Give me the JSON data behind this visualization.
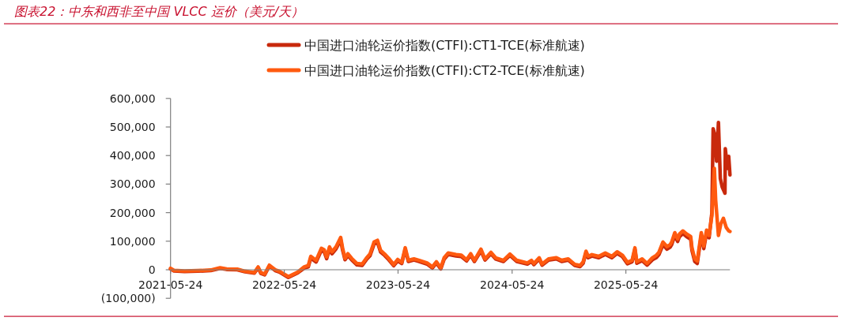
{
  "chart_data": {
    "type": "line",
    "title": "图表22：中东和西非至中国 VLCC 运价（美元/天）",
    "series": [
      {
        "name": "中国进口油轮运价指数(CTFI):CT1-TCE(标准航速)",
        "color": "#c8290c",
        "x": [
          "2021-05-24",
          "2021-06-04",
          "2021-07-08",
          "2021-08-19",
          "2021-09-30",
          "2021-10-30",
          "2021-11-20",
          "2021-12-24",
          "2022-01-18",
          "2022-02-17",
          "2022-03-01",
          "2022-03-10",
          "2022-03-22",
          "2022-04-06",
          "2022-04-25",
          "2022-05-08",
          "2022-06-06",
          "2022-07-06",
          "2022-07-27",
          "2022-08-09",
          "2022-08-17",
          "2022-09-03",
          "2022-09-20",
          "2022-09-29",
          "2022-10-07",
          "2022-10-16",
          "2022-10-24",
          "2022-11-06",
          "2022-11-21",
          "2022-11-27",
          "2022-12-05",
          "2022-12-14",
          "2022-12-26",
          "2023-01-12",
          "2023-01-29",
          "2023-02-11",
          "2023-02-23",
          "2023-03-08",
          "2023-03-19",
          "2023-03-29",
          "2023-04-11",
          "2023-04-24",
          "2023-05-10",
          "2023-05-23",
          "2023-06-05",
          "2023-06-16",
          "2023-06-26",
          "2023-07-14",
          "2023-07-31",
          "2023-08-25",
          "2023-09-11",
          "2023-09-24",
          "2023-10-08",
          "2023-10-19",
          "2023-11-01",
          "2023-11-26",
          "2023-12-13",
          "2023-12-30",
          "2024-01-12",
          "2024-01-24",
          "2024-02-14",
          "2024-02-27",
          "2024-03-17",
          "2024-04-01",
          "2024-04-26",
          "2024-05-17",
          "2024-06-08",
          "2024-07-12",
          "2024-07-25",
          "2024-08-02",
          "2024-08-19",
          "2024-08-28",
          "2024-09-18",
          "2024-10-13",
          "2024-10-30",
          "2024-11-20",
          "2024-12-11",
          "2024-12-28",
          "2025-01-07",
          "2025-01-16",
          "2025-01-23",
          "2025-02-04",
          "2025-02-26",
          "2025-03-19",
          "2025-04-09",
          "2025-04-26",
          "2025-05-13",
          "2025-05-29",
          "2025-06-13",
          "2025-06-22",
          "2025-06-28",
          "2025-07-15",
          "2025-07-31",
          "2025-08-17",
          "2025-08-30",
          "2025-09-07",
          "2025-09-20",
          "2025-10-03",
          "2025-10-13",
          "2025-10-18",
          "2025-10-28",
          "2025-11-06",
          "2025-11-12",
          "2025-11-23",
          "2025-12-05",
          "2025-12-18",
          "2025-12-22",
          "2025-12-31",
          "2026-01-08",
          "2026-01-21",
          "2026-01-29",
          "2026-02-07",
          "2026-02-15",
          "2026-02-24",
          "2026-02-28",
          "2026-03-06",
          "2026-03-11",
          "2026-03-17",
          "2026-03-23",
          "2026-03-29",
          "2026-04-07",
          "2026-04-08",
          "2026-04-15",
          "2026-04-19",
          "2026-04-23"
        ],
        "values": [
          3000,
          -4000,
          -6000,
          -5000,
          -3000,
          5000,
          1000,
          0,
          -7000,
          -12000,
          7000,
          -13000,
          -18000,
          13000,
          -3000,
          -8000,
          -27000,
          -11000,
          6000,
          10000,
          41000,
          27000,
          68000,
          63000,
          39000,
          73000,
          56000,
          73000,
          105000,
          69000,
          35000,
          50000,
          35000,
          17000,
          15000,
          35000,
          49000,
          90000,
          96000,
          62000,
          50000,
          35000,
          14000,
          31000,
          22000,
          71000,
          29000,
          34000,
          29000,
          20000,
          6000,
          24000,
          3000,
          37000,
          54000,
          48000,
          46000,
          31000,
          51000,
          29000,
          66000,
          34000,
          56000,
          38000,
          29000,
          50000,
          29000,
          20000,
          29000,
          18000,
          38000,
          16000,
          34000,
          38000,
          29000,
          34000,
          15000,
          11000,
          23000,
          59000,
          42000,
          48000,
          42000,
          54000,
          42000,
          57000,
          46000,
          21000,
          28000,
          71000,
          23000,
          32000,
          16000,
          35000,
          43000,
          53000,
          88000,
          72000,
          79000,
          88000,
          121000,
          99000,
          116000,
          127000,
          116000,
          107000,
          68000,
          29000,
          22000,
          121000,
          74000,
          130000,
          112000,
          200000,
          494000,
          470000,
          380000,
          516000,
          320000,
          290000,
          268000,
          424000,
          355000,
          397000,
          332000
        ]
      },
      {
        "name": "中国进口油轮运价指数(CTFI):CT2-TCE(标准航速)",
        "color": "#ff5a0f",
        "x": [
          "2021-05-24",
          "2021-06-04",
          "2021-07-08",
          "2021-08-19",
          "2021-09-30",
          "2021-10-30",
          "2021-11-20",
          "2021-12-24",
          "2022-01-18",
          "2022-02-17",
          "2022-03-01",
          "2022-03-10",
          "2022-03-22",
          "2022-04-06",
          "2022-04-25",
          "2022-05-08",
          "2022-06-06",
          "2022-07-06",
          "2022-07-27",
          "2022-08-09",
          "2022-08-17",
          "2022-09-03",
          "2022-09-20",
          "2022-09-29",
          "2022-10-07",
          "2022-10-16",
          "2022-10-24",
          "2022-11-06",
          "2022-11-21",
          "2022-11-27",
          "2022-12-05",
          "2022-12-14",
          "2022-12-26",
          "2023-01-12",
          "2023-01-29",
          "2023-02-11",
          "2023-02-23",
          "2023-03-08",
          "2023-03-19",
          "2023-03-29",
          "2023-04-11",
          "2023-04-24",
          "2023-05-10",
          "2023-05-23",
          "2023-06-05",
          "2023-06-16",
          "2023-06-26",
          "2023-07-14",
          "2023-07-31",
          "2023-08-25",
          "2023-09-11",
          "2023-09-24",
          "2023-10-08",
          "2023-10-19",
          "2023-11-01",
          "2023-11-26",
          "2023-12-13",
          "2023-12-30",
          "2024-01-12",
          "2024-01-24",
          "2024-02-14",
          "2024-02-27",
          "2024-03-17",
          "2024-04-01",
          "2024-04-26",
          "2024-05-17",
          "2024-06-08",
          "2024-07-12",
          "2024-07-25",
          "2024-08-02",
          "2024-08-19",
          "2024-08-28",
          "2024-09-18",
          "2024-10-13",
          "2024-10-30",
          "2024-11-20",
          "2024-12-11",
          "2024-12-28",
          "2025-01-07",
          "2025-01-16",
          "2025-01-23",
          "2025-02-04",
          "2025-02-26",
          "2025-03-19",
          "2025-04-09",
          "2025-04-26",
          "2025-05-13",
          "2025-05-29",
          "2025-06-13",
          "2025-06-22",
          "2025-06-28",
          "2025-07-15",
          "2025-07-31",
          "2025-08-17",
          "2025-08-30",
          "2025-09-07",
          "2025-09-20",
          "2025-10-03",
          "2025-10-13",
          "2025-10-18",
          "2025-10-28",
          "2025-11-06",
          "2025-11-12",
          "2025-11-23",
          "2025-12-05",
          "2025-12-18",
          "2025-12-22",
          "2025-12-31",
          "2026-01-08",
          "2026-01-21",
          "2026-01-29",
          "2026-02-07",
          "2026-02-15",
          "2026-02-24",
          "2026-03-04",
          "2026-03-08",
          "2026-03-17",
          "2026-03-25",
          "2026-04-02",
          "2026-04-11",
          "2026-04-19",
          "2026-04-23"
        ],
        "values": [
          5000,
          -2000,
          -4000,
          -3000,
          -1000,
          7000,
          3000,
          2000,
          -5000,
          -10000,
          10000,
          -10000,
          -15000,
          16000,
          0,
          -5000,
          -24000,
          -8000,
          10000,
          15000,
          47000,
          33000,
          75000,
          70000,
          45000,
          80000,
          63000,
          80000,
          113000,
          76000,
          40000,
          56000,
          40000,
          22000,
          20000,
          40000,
          55000,
          97000,
          103000,
          68000,
          55000,
          40000,
          18000,
          36000,
          26000,
          77000,
          33000,
          38000,
          33000,
          24000,
          10000,
          28000,
          7000,
          42000,
          59000,
          53000,
          51000,
          35000,
          56000,
          33000,
          72000,
          38000,
          61000,
          42000,
          33000,
          55000,
          33000,
          24000,
          33000,
          22000,
          42000,
          20000,
          38000,
          42000,
          33000,
          38000,
          19000,
          15000,
          28000,
          65000,
          47000,
          53000,
          47000,
          59000,
          47000,
          63000,
          51000,
          26000,
          33000,
          77000,
          28000,
          38000,
          22000,
          42000,
          51000,
          61000,
          97000,
          81000,
          88000,
          97000,
          130000,
          108000,
          125000,
          136000,
          125000,
          116000,
          77000,
          38000,
          31000,
          130000,
          83000,
          139000,
          120000,
          190000,
          355000,
          245000,
          120000,
          162000,
          180000,
          148000,
          136000,
          134000
        ]
      }
    ],
    "xlim": [
      "2021-05-24",
      "2026-04-23"
    ],
    "xticks": [
      "2021-05-24",
      "2022-05-24",
      "2023-05-24",
      "2024-05-24",
      "2025-05-24"
    ],
    "ylim": [
      -100000,
      600000
    ],
    "yticks": [
      {
        "value": -100000,
        "label": "(100,000)"
      },
      0,
      {
        "value": 100000,
        "label": "100,000"
      },
      {
        "value": 200000,
        "label": "200,000"
      },
      {
        "value": 300000,
        "label": "300,000"
      },
      {
        "value": 400000,
        "label": "400,000"
      },
      {
        "value": 500000,
        "label": "500,000"
      },
      {
        "value": 600000,
        "label": "600,000"
      }
    ],
    "legend": "top"
  }
}
